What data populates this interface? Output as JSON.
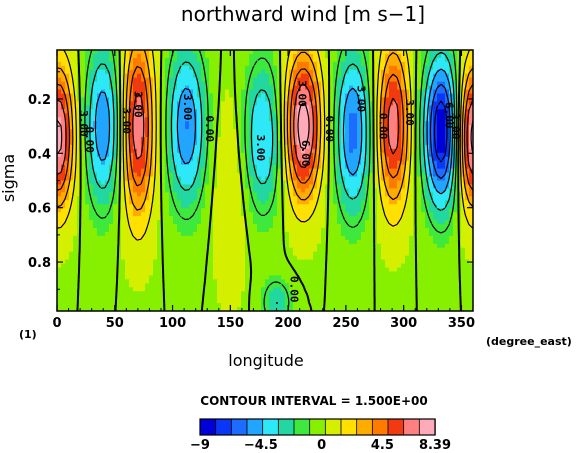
{
  "chart_data": {
    "type": "heatmap",
    "title": "northward wind [m s−1]",
    "xlabel": "longitude",
    "ylabel": "sigma",
    "x_unit": "(degree_east)",
    "y_unit": "(1)",
    "xlim": [
      0,
      360
    ],
    "ylim": [
      0.02,
      0.98
    ],
    "y_inverted": true,
    "x_ticks": [
      "0",
      "50",
      "100",
      "150",
      "200",
      "250",
      "300",
      "350"
    ],
    "y_ticks": [
      "0.2",
      "0.4",
      "0.6",
      "0.8"
    ],
    "contour_interval_text": "CONTOUR INTERVAL = 1.500E+00",
    "contour_labels": [
      {
        "text": "3.00",
        "lon": 20,
        "sigma": 0.29
      },
      {
        "text": "0.00",
        "lon": 25,
        "sigma": 0.35
      },
      {
        "text": "3.00",
        "lon": 57,
        "sigma": 0.28
      },
      {
        "text": "3.00",
        "lon": 67,
        "sigma": 0.22
      },
      {
        "text": "3.00",
        "lon": 110,
        "sigma": 0.23
      },
      {
        "text": "0.00",
        "lon": 129,
        "sigma": 0.31
      },
      {
        "text": "3.00",
        "lon": 173,
        "sigma": 0.38
      },
      {
        "text": "3.00",
        "lon": 209,
        "sigma": 0.18
      },
      {
        "text": "6.00",
        "lon": 212,
        "sigma": 0.4
      },
      {
        "text": "0.00",
        "lon": 233,
        "sigma": 0.31
      },
      {
        "text": "3.00",
        "lon": 260,
        "sigma": 0.2
      },
      {
        "text": "0.00",
        "lon": 279,
        "sigma": 0.3
      },
      {
        "text": "3.00",
        "lon": 302,
        "sigma": 0.25
      },
      {
        "text": "6.00",
        "lon": 336,
        "sigma": 0.26
      },
      {
        "text": "3.00",
        "lon": 342,
        "sigma": 0.3
      },
      {
        "text": "0.00",
        "lon": 202,
        "sigma": 0.9
      }
    ],
    "colorbar": {
      "min": -9,
      "max": 8.39,
      "tick_labels": [
        "−9",
        "−4.5",
        "0",
        "4.5",
        "8.39"
      ],
      "tick_values": [
        -9,
        -4.5,
        0,
        4.5,
        8.39
      ],
      "colors": [
        "#0000d8",
        "#0a36f5",
        "#1e6cff",
        "#22a5ff",
        "#2ee8f7",
        "#22d8a0",
        "#3ee83c",
        "#86f000",
        "#d4ef00",
        "#ffe000",
        "#ffac00",
        "#ff7b00",
        "#f23a10",
        "#ff8080",
        "#ffaab8"
      ]
    },
    "features": [
      {
        "lon": 0,
        "amp": 8.4,
        "width": 10,
        "sigma0": 0.34,
        "sdepth": 0.26
      },
      {
        "lon": 40,
        "amp": -5.5,
        "width": 11,
        "sigma0": 0.3,
        "sdepth": 0.3
      },
      {
        "lon": 70,
        "amp": 7.0,
        "width": 10,
        "sigma0": 0.3,
        "sdepth": 0.34
      },
      {
        "lon": 112,
        "amp": -5.6,
        "width": 12,
        "sigma0": 0.3,
        "sdepth": 0.3
      },
      {
        "lon": 150,
        "amp": 1.6,
        "width": 10,
        "sigma0": 0.55,
        "sdepth": 0.35
      },
      {
        "lon": 178,
        "amp": -4.5,
        "width": 12,
        "sigma0": 0.34,
        "sdepth": 0.28
      },
      {
        "lon": 190,
        "amp": -3.0,
        "width": 9,
        "sigma0": 0.95,
        "sdepth": 0.09
      },
      {
        "lon": 213,
        "amp": 8.39,
        "width": 11,
        "sigma0": 0.3,
        "sdepth": 0.27
      },
      {
        "lon": 256,
        "amp": -6.0,
        "width": 11,
        "sigma0": 0.32,
        "sdepth": 0.3
      },
      {
        "lon": 291,
        "amp": 6.8,
        "width": 10,
        "sigma0": 0.3,
        "sdepth": 0.3
      },
      {
        "lon": 333,
        "amp": -9.0,
        "width": 11,
        "sigma0": 0.32,
        "sdepth": 0.28
      }
    ]
  }
}
